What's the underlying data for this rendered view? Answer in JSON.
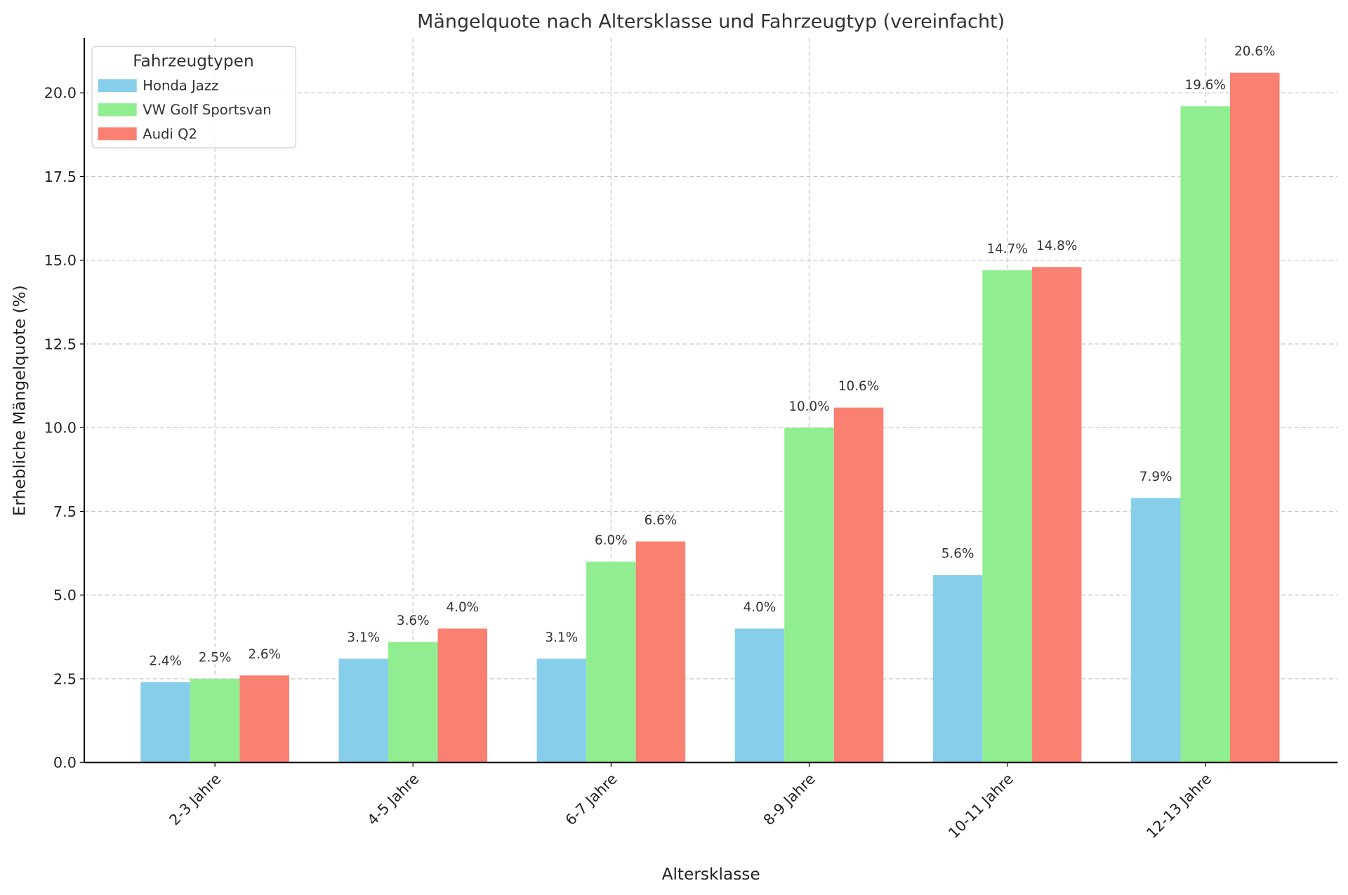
{
  "chart_data": {
    "type": "bar",
    "title": "Mängelquote nach Altersklasse und Fahrzeugtyp (vereinfacht)",
    "xlabel": "Altersklasse",
    "ylabel": "Erhebliche Mängelquote (%)",
    "categories": [
      "2-3 Jahre",
      "4-5 Jahre",
      "6-7 Jahre",
      "8-9 Jahre",
      "10-11 Jahre",
      "12-13 Jahre"
    ],
    "series": [
      {
        "name": "Honda Jazz",
        "color": "#87ceeb",
        "values": [
          2.4,
          3.1,
          3.1,
          4.0,
          5.6,
          7.9
        ]
      },
      {
        "name": "VW Golf Sportsvan",
        "color": "#90ee90",
        "values": [
          2.5,
          3.6,
          6.0,
          10.0,
          14.7,
          19.6
        ]
      },
      {
        "name": "Audi Q2",
        "color": "#fa8072",
        "values": [
          2.6,
          4.0,
          6.6,
          10.6,
          14.8,
          20.6
        ]
      }
    ],
    "ylim": [
      0,
      21.64
    ],
    "yticks": [
      "0.0",
      "2.5",
      "5.0",
      "7.5",
      "10.0",
      "12.5",
      "15.0",
      "17.5",
      "20.0"
    ],
    "grid": true,
    "legend": {
      "title": "Fahrzeugtypen",
      "placement": "top-left"
    },
    "label_suffix": "%"
  }
}
